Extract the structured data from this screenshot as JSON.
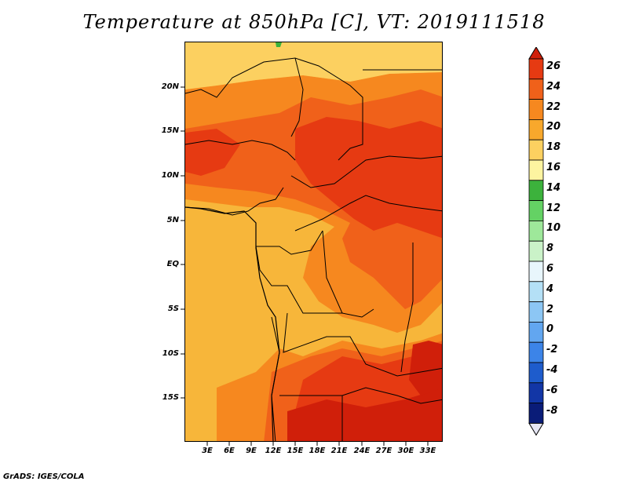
{
  "title": "Temperature at 850hPa [C], VT: 2019111518",
  "footer": "GrADS: IGES/COLA",
  "y_ticks": [
    "20N",
    "15N",
    "10N",
    "5N",
    "EQ",
    "5S",
    "10S",
    "15S"
  ],
  "x_ticks": [
    "3E",
    "6E",
    "9E",
    "12E",
    "15E",
    "18E",
    "21E",
    "24E",
    "27E",
    "30E",
    "33E"
  ],
  "colorbar": {
    "labels": [
      "26",
      "24",
      "22",
      "20",
      "18",
      "16",
      "14",
      "12",
      "10",
      "8",
      "6",
      "4",
      "2",
      "0",
      "-2",
      "-4",
      "-6",
      "-8"
    ],
    "colors": [
      "#d01f0a",
      "#e63a12",
      "#f0611a",
      "#f6881f",
      "#f8a82c",
      "#fcd060",
      "#fdf4a0",
      "#3cb23c",
      "#64d264",
      "#9ee89a",
      "#caf2c8",
      "#e8f6fc",
      "#b4e0f6",
      "#8cc6f4",
      "#62a6f0",
      "#3c84e8",
      "#1e5ccc",
      "#1236a6",
      "#0a1c78",
      "#e6e6f4"
    ]
  },
  "fill_colors": {
    "t16": "#fcd060",
    "t18": "#f8a82c",
    "t20": "#f6881f",
    "t22": "#f0611a",
    "t24": "#e63a12",
    "t26": "#d01f0a",
    "green": "#3cb23c"
  }
}
